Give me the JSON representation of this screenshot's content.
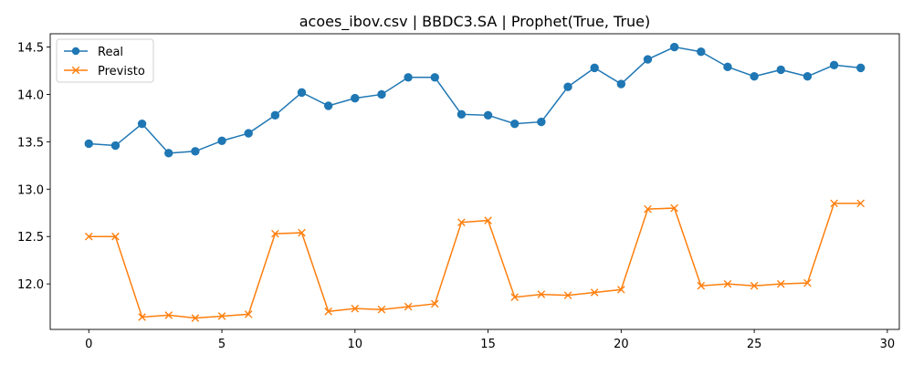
{
  "chart_data": {
    "type": "line",
    "title": "acoes_ibov.csv | BBDC3.SA | Prophet(True, True)",
    "xlabel": "",
    "ylabel": "",
    "x": [
      0,
      1,
      2,
      3,
      4,
      5,
      6,
      7,
      8,
      9,
      10,
      11,
      12,
      13,
      14,
      15,
      16,
      17,
      18,
      19,
      20,
      21,
      22,
      23,
      24,
      25,
      26,
      27,
      28,
      29
    ],
    "xlim": [
      -1.45,
      30.45
    ],
    "ylim": [
      11.52,
      14.64
    ],
    "xticks": [
      0,
      5,
      10,
      15,
      20,
      25,
      30
    ],
    "xtick_labels": [
      "0",
      "5",
      "10",
      "15",
      "20",
      "25",
      "30"
    ],
    "yticks": [
      12.0,
      12.5,
      13.0,
      13.5,
      14.0,
      14.5
    ],
    "ytick_labels": [
      "12.0",
      "12.5",
      "13.0",
      "13.5",
      "14.0",
      "14.5"
    ],
    "legend_position": "top-left",
    "grid": false,
    "series": [
      {
        "name": "Real",
        "color": "#1f77b4",
        "marker": "circle",
        "values": [
          13.48,
          13.46,
          13.69,
          13.38,
          13.4,
          13.51,
          13.59,
          13.78,
          14.02,
          13.88,
          13.96,
          14.0,
          14.18,
          14.18,
          13.79,
          13.78,
          13.69,
          13.71,
          14.08,
          14.28,
          14.11,
          14.37,
          14.5,
          14.45,
          14.29,
          14.19,
          14.26,
          14.19,
          14.31,
          14.28
        ]
      },
      {
        "name": "Previsto",
        "color": "#ff7f0e",
        "marker": "x",
        "values": [
          12.5,
          12.5,
          11.65,
          11.67,
          11.64,
          11.66,
          11.68,
          12.53,
          12.54,
          11.71,
          11.74,
          11.73,
          11.76,
          11.79,
          12.65,
          12.67,
          11.86,
          11.89,
          11.88,
          11.91,
          11.94,
          12.79,
          12.8,
          11.98,
          12.0,
          11.98,
          12.0,
          12.01,
          12.85,
          12.85
        ]
      }
    ]
  }
}
